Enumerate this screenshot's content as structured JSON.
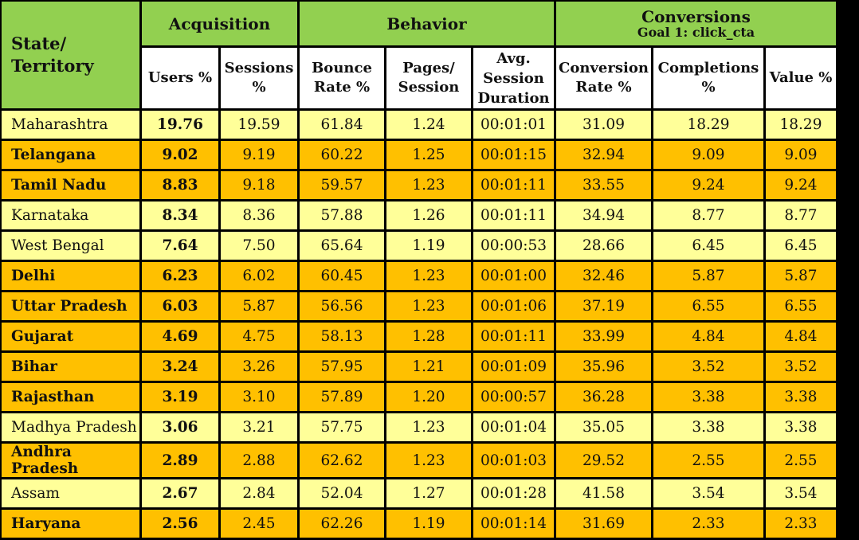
{
  "header": {
    "state_label": "State/ Territory",
    "groups": {
      "acquisition": "Acquisition",
      "behavior": "Behavior",
      "conversions": "Conversions",
      "conversions_goal": "Goal 1: click_cta"
    },
    "columns": {
      "users": "Users %",
      "sessions": "Sessions %",
      "bounce": "Bounce Rate %",
      "pages": "Pages/ Session",
      "duration": "Avg. Session Duration",
      "conv_rate": "Conversion Rate %",
      "completions": "Completions %",
      "value": "Value %"
    }
  },
  "rows": [
    {
      "state": "Maharashtra",
      "style": "light",
      "users": "19.76",
      "sessions": "19.59",
      "bounce": "61.84",
      "pages": "1.24",
      "duration": "00:01:01",
      "conv_rate": "31.09",
      "completions": "18.29",
      "value": "18.29"
    },
    {
      "state": "Telangana",
      "style": "dark",
      "users": "9.02",
      "sessions": "9.19",
      "bounce": "60.22",
      "pages": "1.25",
      "duration": "00:01:15",
      "conv_rate": "32.94",
      "completions": "9.09",
      "value": "9.09"
    },
    {
      "state": "Tamil Nadu",
      "style": "dark",
      "users": "8.83",
      "sessions": "9.18",
      "bounce": "59.57",
      "pages": "1.23",
      "duration": "00:01:11",
      "conv_rate": "33.55",
      "completions": "9.24",
      "value": "9.24"
    },
    {
      "state": "Karnataka",
      "style": "light",
      "users": "8.34",
      "sessions": "8.36",
      "bounce": "57.88",
      "pages": "1.26",
      "duration": "00:01:11",
      "conv_rate": "34.94",
      "completions": "8.77",
      "value": "8.77"
    },
    {
      "state": "West Bengal",
      "style": "light",
      "users": "7.64",
      "sessions": "7.50",
      "bounce": "65.64",
      "pages": "1.19",
      "duration": "00:00:53",
      "conv_rate": "28.66",
      "completions": "6.45",
      "value": "6.45"
    },
    {
      "state": "Delhi",
      "style": "dark",
      "users": "6.23",
      "sessions": "6.02",
      "bounce": "60.45",
      "pages": "1.23",
      "duration": "00:01:00",
      "conv_rate": "32.46",
      "completions": "5.87",
      "value": "5.87"
    },
    {
      "state": "Uttar Pradesh",
      "style": "dark",
      "users": "6.03",
      "sessions": "5.87",
      "bounce": "56.56",
      "pages": "1.23",
      "duration": "00:01:06",
      "conv_rate": "37.19",
      "completions": "6.55",
      "value": "6.55"
    },
    {
      "state": "Gujarat",
      "style": "dark",
      "users": "4.69",
      "sessions": "4.75",
      "bounce": "58.13",
      "pages": "1.28",
      "duration": "00:01:11",
      "conv_rate": "33.99",
      "completions": "4.84",
      "value": "4.84"
    },
    {
      "state": "Bihar",
      "style": "dark",
      "users": "3.24",
      "sessions": "3.26",
      "bounce": "57.95",
      "pages": "1.21",
      "duration": "00:01:09",
      "conv_rate": "35.96",
      "completions": "3.52",
      "value": "3.52"
    },
    {
      "state": "Rajasthan",
      "style": "dark",
      "users": "3.19",
      "sessions": "3.10",
      "bounce": "57.89",
      "pages": "1.20",
      "duration": "00:00:57",
      "conv_rate": "36.28",
      "completions": "3.38",
      "value": "3.38"
    },
    {
      "state": "Madhya Pradesh",
      "style": "light",
      "users": "3.06",
      "sessions": "3.21",
      "bounce": "57.75",
      "pages": "1.23",
      "duration": "00:01:04",
      "conv_rate": "35.05",
      "completions": "3.38",
      "value": "3.38"
    },
    {
      "state": "Andhra Pradesh",
      "style": "dark",
      "users": "2.89",
      "sessions": "2.88",
      "bounce": "62.62",
      "pages": "1.23",
      "duration": "00:01:03",
      "conv_rate": "29.52",
      "completions": "2.55",
      "value": "2.55"
    },
    {
      "state": "Assam",
      "style": "light",
      "users": "2.67",
      "sessions": "2.84",
      "bounce": "52.04",
      "pages": "1.27",
      "duration": "00:01:28",
      "conv_rate": "41.58",
      "completions": "3.54",
      "value": "3.54"
    },
    {
      "state": "Haryana",
      "style": "dark",
      "users": "2.56",
      "sessions": "2.45",
      "bounce": "62.26",
      "pages": "1.19",
      "duration": "00:01:14",
      "conv_rate": "31.69",
      "completions": "2.33",
      "value": "2.33"
    }
  ],
  "colors": {
    "header_green": "#92d050",
    "row_light": "#ffff99",
    "row_dark": "#ffc000",
    "border": "#000000"
  }
}
